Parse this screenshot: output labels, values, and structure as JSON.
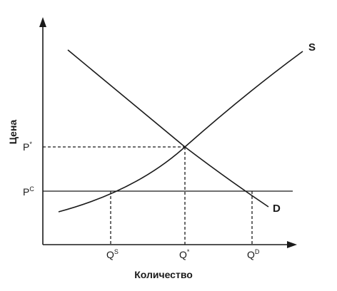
{
  "chart_data": {
    "type": "line",
    "title": "",
    "xlabel": "Количество",
    "ylabel": "Цена",
    "x_ticks": [
      {
        "key": "qs",
        "base": "Q",
        "sup": "S"
      },
      {
        "key": "qstar",
        "base": "Q",
        "sup": "*"
      },
      {
        "key": "qd",
        "base": "Q",
        "sup": "D"
      }
    ],
    "y_ticks": [
      {
        "key": "pstar",
        "base": "P",
        "sup": "*"
      },
      {
        "key": "pc",
        "base": "P",
        "sup": "C"
      }
    ],
    "series": [
      {
        "name": "S",
        "key": "supply"
      },
      {
        "name": "D",
        "key": "demand"
      }
    ],
    "grid": false
  }
}
